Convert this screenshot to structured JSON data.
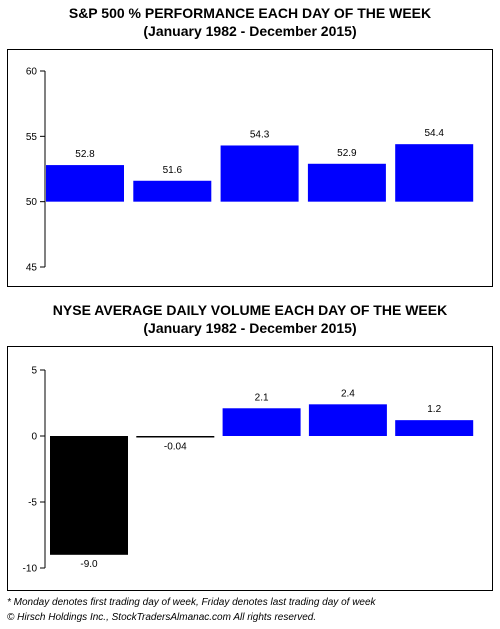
{
  "colors": {
    "positive": "#0000ff",
    "negative": "#000000",
    "axis": "#000000"
  },
  "chart_data": [
    {
      "type": "bar",
      "title": "S&P 500 % PERFORMANCE EACH DAY OF THE WEEK",
      "subtitle": "(January 1982 - December 2015)",
      "xlabel": "",
      "ylabel": "",
      "categories": [
        "",
        "",
        "",
        "",
        ""
      ],
      "values": [
        52.8,
        51.6,
        54.3,
        52.9,
        54.4
      ],
      "value_labels": [
        "52.8",
        "51.6",
        "54.3",
        "52.9",
        "54.4"
      ],
      "baseline": 50,
      "ylim": [
        45,
        60
      ],
      "yticks": [
        45,
        50,
        55,
        60
      ],
      "grid": false,
      "legend": "none"
    },
    {
      "type": "bar",
      "title": "NYSE AVERAGE DAILY VOLUME EACH DAY OF THE WEEK",
      "subtitle": "(January 1982 - December 2015)",
      "xlabel": "",
      "ylabel": "",
      "categories": [
        "",
        "",
        "",
        "",
        ""
      ],
      "values": [
        -9.0,
        -0.04,
        2.1,
        2.4,
        1.2
      ],
      "value_labels": [
        "-9.0",
        "-0.04",
        "2.1",
        "2.4",
        "1.2"
      ],
      "baseline": 0,
      "ylim": [
        -10,
        5
      ],
      "yticks": [
        -10,
        -5,
        0,
        5
      ],
      "grid": false,
      "legend": "none"
    }
  ],
  "footnotes": {
    "note": "* Monday denotes first trading day of week, Friday denotes last trading day of week",
    "copyright": "© Hirsch Holdings Inc., StockTradersAlmanac.com All rights reserved."
  }
}
